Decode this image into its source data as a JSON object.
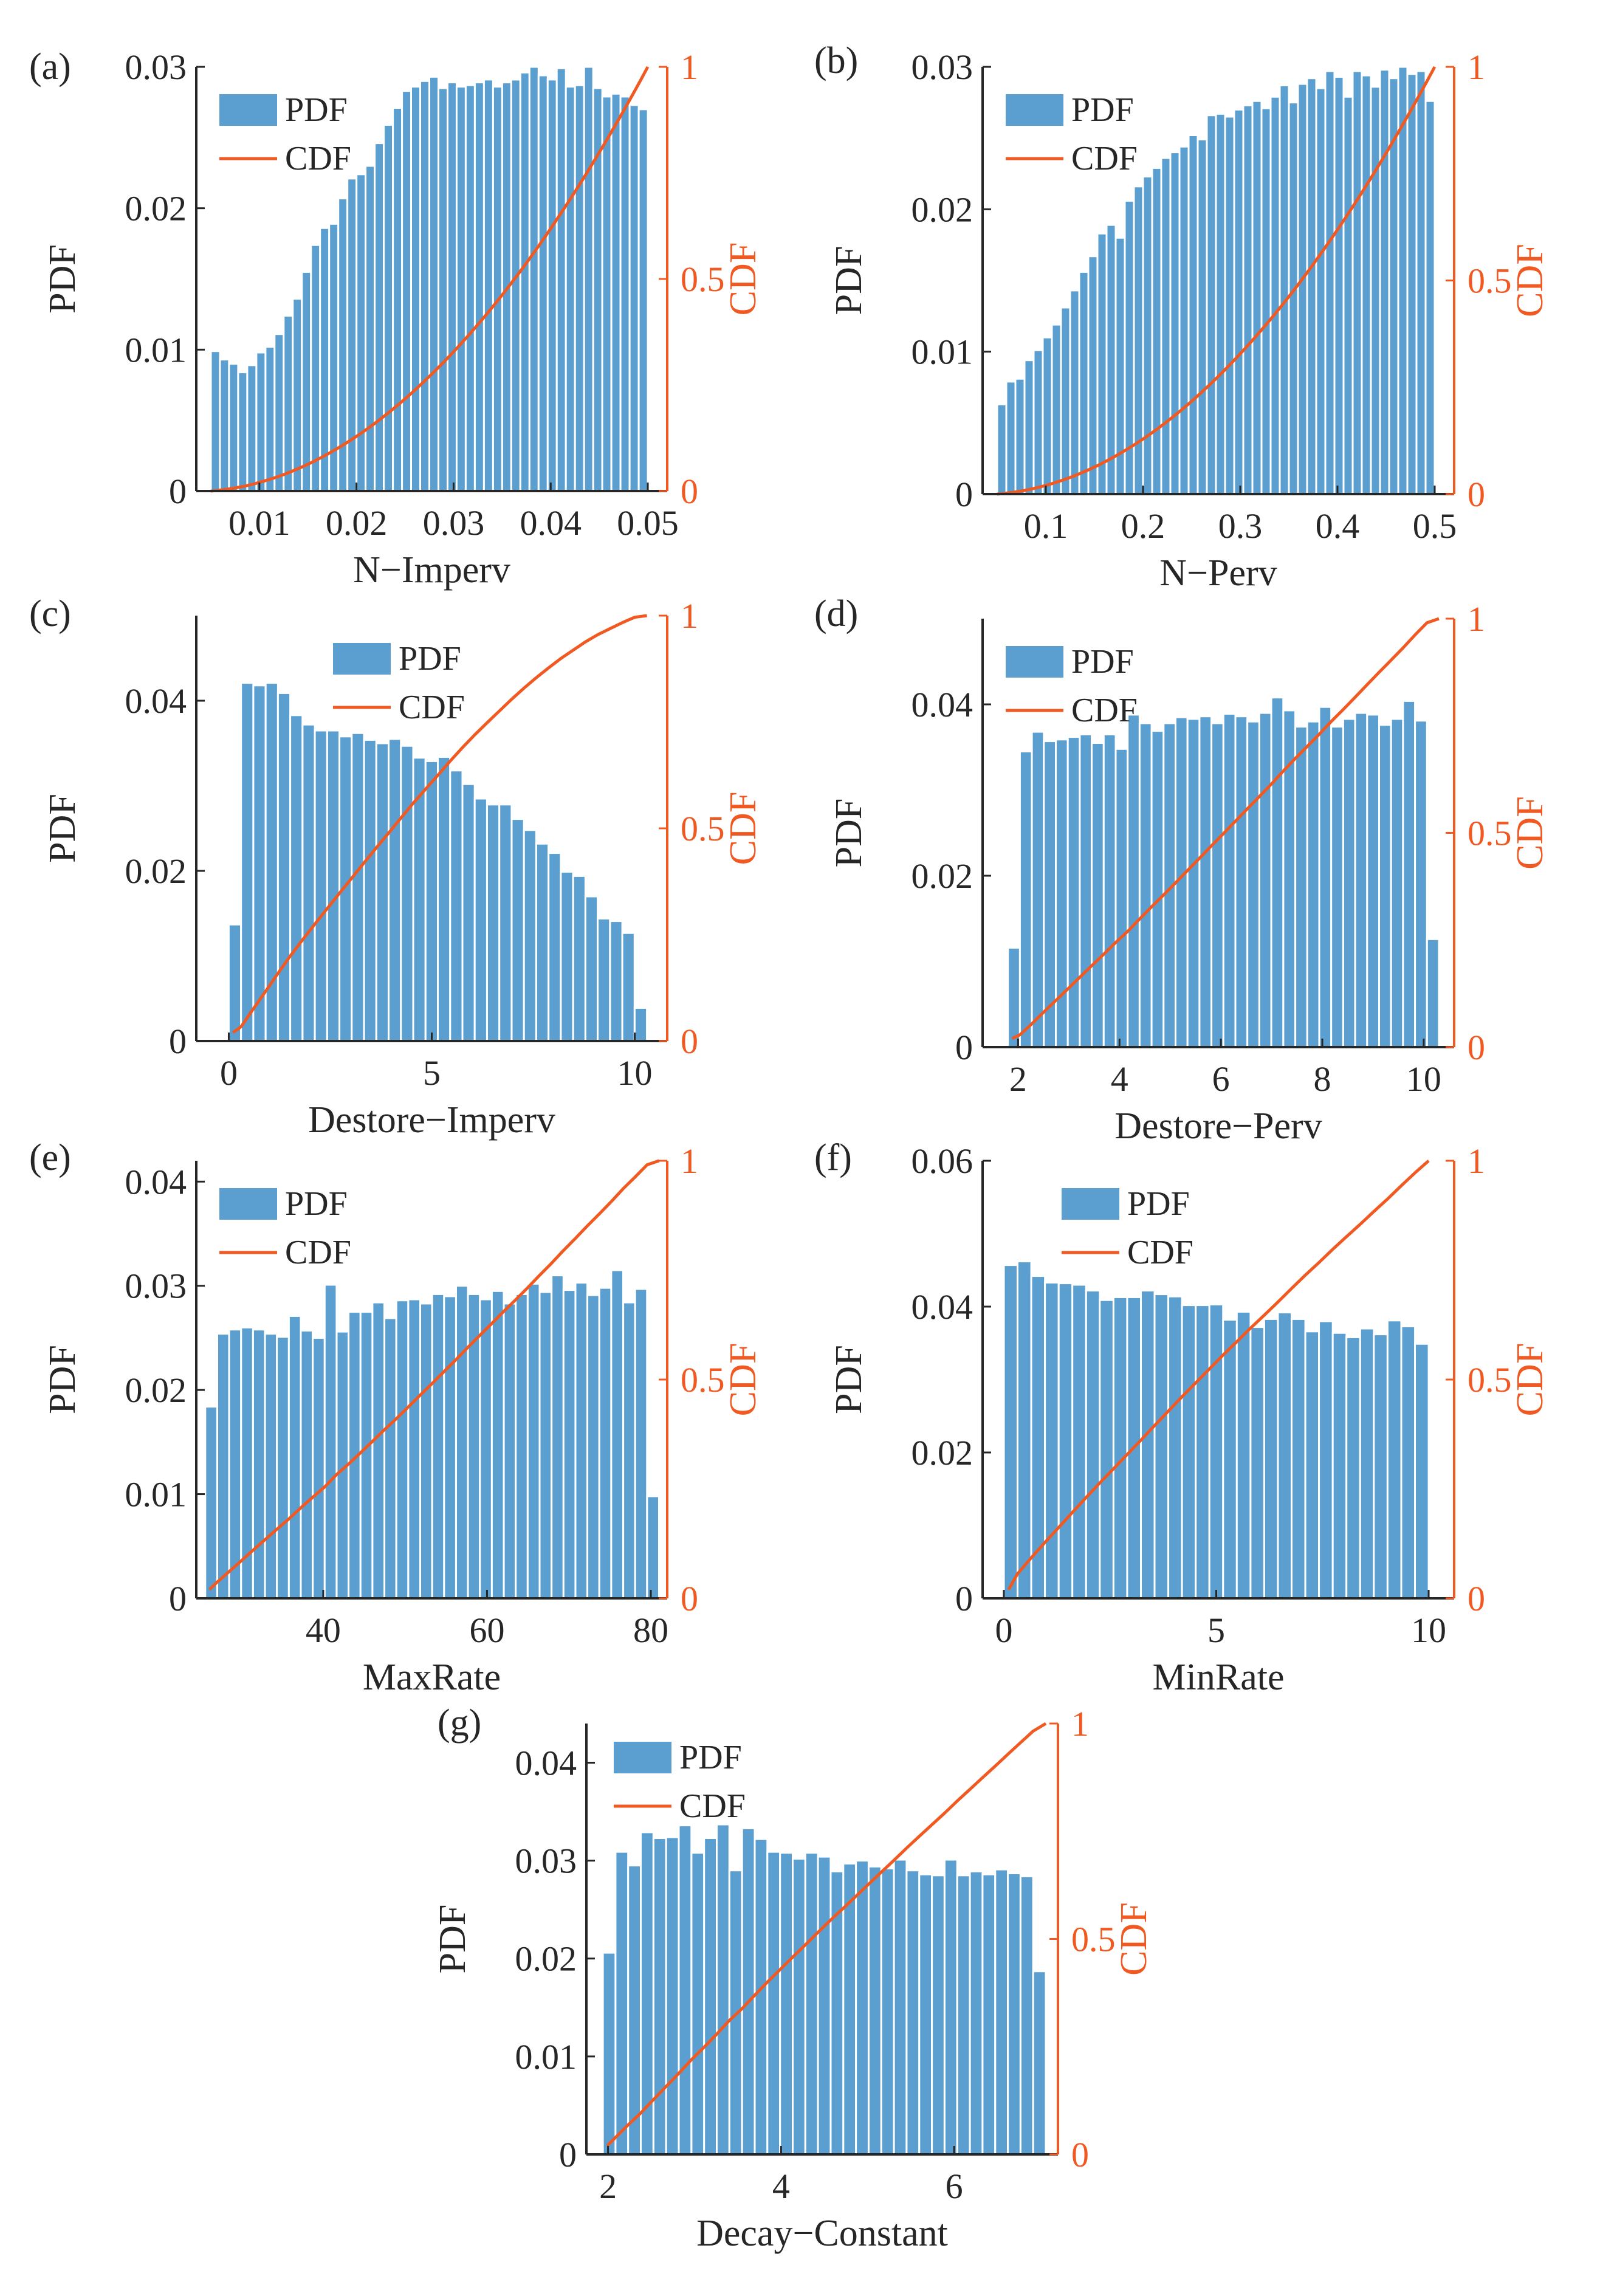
{
  "colors": {
    "bar": "#5a9fd0",
    "bar_edge": "#ffffff",
    "cdf": "#f05a22",
    "axis": "#262626"
  },
  "chart_data": [
    {
      "panel": "(a)",
      "type": "bar+line",
      "xlabel": "N−Imperv",
      "ylabel": "PDF",
      "ylabel_right": "CDF",
      "legend": [
        "PDF",
        "CDF"
      ],
      "xlim": [
        0.0035,
        0.052
      ],
      "ylim": [
        0,
        0.03
      ],
      "y2lim": [
        0,
        1
      ],
      "xticks": [
        0.01,
        0.02,
        0.03,
        0.04,
        0.05
      ],
      "xticklabels": [
        "0.01",
        "0.02",
        "0.03",
        "0.04",
        "0.05"
      ],
      "yticks": [
        0,
        0.01,
        0.02,
        0.03
      ],
      "yticklabels": [
        "0",
        "0.01",
        "0.02",
        "0.03"
      ],
      "y2ticks": [
        0,
        0.5,
        1
      ],
      "y2ticklabels": [
        "0",
        "0.5",
        "1"
      ],
      "bin_start": 0.005,
      "bin_end": 0.05,
      "values": [
        0.0099,
        0.0093,
        0.009,
        0.0084,
        0.0089,
        0.0098,
        0.0102,
        0.0111,
        0.0124,
        0.0136,
        0.0155,
        0.0174,
        0.0186,
        0.0189,
        0.0207,
        0.0221,
        0.0224,
        0.023,
        0.0246,
        0.0259,
        0.0271,
        0.0283,
        0.0286,
        0.029,
        0.0293,
        0.0285,
        0.0289,
        0.0286,
        0.0287,
        0.0289,
        0.0291,
        0.0286,
        0.0289,
        0.0291,
        0.0296,
        0.03,
        0.0294,
        0.0291,
        0.0299,
        0.0286,
        0.0287,
        0.03,
        0.0285,
        0.0279,
        0.0281,
        0.0279,
        0.0273,
        0.027
      ],
      "cdf_shape": "quadratic"
    },
    {
      "panel": "(b)",
      "type": "bar+line",
      "xlabel": "N−Perv",
      "ylabel": "PDF",
      "ylabel_right": "CDF",
      "legend": [
        "PDF",
        "CDF"
      ],
      "xlim": [
        0.035,
        0.52
      ],
      "ylim": [
        0,
        0.03
      ],
      "y2lim": [
        0,
        1
      ],
      "xticks": [
        0.1,
        0.2,
        0.3,
        0.4,
        0.5
      ],
      "xticklabels": [
        "0.1",
        "0.2",
        "0.3",
        "0.4",
        "0.5"
      ],
      "yticks": [
        0,
        0.01,
        0.02,
        0.03
      ],
      "yticklabels": [
        "0",
        "0.01",
        "0.02",
        "0.03"
      ],
      "y2ticks": [
        0,
        0.5,
        1
      ],
      "y2ticklabels": [
        "0",
        "0.5",
        "1"
      ],
      "bin_start": 0.05,
      "bin_end": 0.5,
      "values": [
        0.0063,
        0.0079,
        0.0081,
        0.0094,
        0.0101,
        0.011,
        0.0119,
        0.0131,
        0.0143,
        0.0156,
        0.0167,
        0.0183,
        0.0189,
        0.018,
        0.0206,
        0.0216,
        0.0223,
        0.0229,
        0.0236,
        0.024,
        0.0244,
        0.0252,
        0.0249,
        0.0266,
        0.0267,
        0.0265,
        0.027,
        0.0273,
        0.0276,
        0.0271,
        0.0279,
        0.0287,
        0.0275,
        0.0288,
        0.0292,
        0.0285,
        0.0297,
        0.0293,
        0.0279,
        0.0297,
        0.0294,
        0.0286,
        0.0298,
        0.0292,
        0.03,
        0.0295,
        0.0297,
        0.0276
      ],
      "cdf_shape": "quadratic"
    },
    {
      "panel": "(c)",
      "type": "bar+line",
      "xlabel": "Destore−Imperv",
      "ylabel": "PDF",
      "ylabel_right": "CDF",
      "legend": [
        "PDF",
        "CDF"
      ],
      "xlim": [
        -0.8,
        10.8
      ],
      "ylim": [
        0,
        0.05
      ],
      "y2lim": [
        0,
        1
      ],
      "xticks": [
        0,
        5,
        10
      ],
      "xticklabels": [
        "0",
        "5",
        "10"
      ],
      "yticks": [
        0,
        0.02,
        0.04
      ],
      "yticklabels": [
        "0",
        "0.02",
        "0.04"
      ],
      "y2ticks": [
        0,
        0.5,
        1
      ],
      "y2ticklabels": [
        "0",
        "0.5",
        "1"
      ],
      "bin_start": 0.0,
      "bin_end": 10.3,
      "values": [
        0.0137,
        0.0421,
        0.0418,
        0.0421,
        0.0409,
        0.0383,
        0.0372,
        0.0365,
        0.0365,
        0.0358,
        0.0362,
        0.0354,
        0.035,
        0.0355,
        0.0347,
        0.0333,
        0.0329,
        0.0334,
        0.0318,
        0.0302,
        0.0285,
        0.0278,
        0.0278,
        0.0261,
        0.0248,
        0.0232,
        0.0221,
        0.0199,
        0.0194,
        0.017,
        0.0144,
        0.0141,
        0.0127,
        0.0039
      ],
      "cdf_shape": "integral"
    },
    {
      "panel": "(d)",
      "type": "bar+line",
      "xlabel": "Destore−Perv",
      "ylabel": "PDF",
      "ylabel_right": "CDF",
      "legend": [
        "PDF",
        "CDF"
      ],
      "xlim": [
        1.3,
        10.6
      ],
      "ylim": [
        0,
        0.05
      ],
      "y2lim": [
        0,
        1
      ],
      "xticks": [
        2,
        4,
        6,
        8,
        10
      ],
      "xticklabels": [
        "2",
        "4",
        "6",
        "8",
        "10"
      ],
      "yticks": [
        0,
        0.02,
        0.04
      ],
      "yticklabels": [
        "0",
        "0.02",
        "0.04"
      ],
      "y2ticks": [
        0,
        0.5,
        1
      ],
      "y2ticklabels": [
        "0",
        "0.5",
        "1"
      ],
      "bin_start": 1.8,
      "bin_end": 10.3,
      "values": [
        0.0116,
        0.0345,
        0.0368,
        0.0357,
        0.0359,
        0.0362,
        0.0365,
        0.0355,
        0.0365,
        0.0348,
        0.0388,
        0.0378,
        0.0369,
        0.0378,
        0.0385,
        0.0383,
        0.0386,
        0.0378,
        0.0389,
        0.0386,
        0.038,
        0.039,
        0.0408,
        0.0393,
        0.0374,
        0.038,
        0.0397,
        0.0374,
        0.0383,
        0.039,
        0.0388,
        0.0376,
        0.0383,
        0.0404,
        0.0381,
        0.0126
      ],
      "cdf_shape": "integral"
    },
    {
      "panel": "(e)",
      "type": "bar+line",
      "xlabel": "MaxRate",
      "ylabel": "PDF",
      "ylabel_right": "CDF",
      "legend": [
        "PDF",
        "CDF"
      ],
      "xlim": [
        24.5,
        82
      ],
      "ylim": [
        0,
        0.042
      ],
      "y2lim": [
        0,
        1
      ],
      "xticks": [
        40,
        60,
        80
      ],
      "xticklabels": [
        "40",
        "60",
        "80"
      ],
      "yticks": [
        0,
        0.01,
        0.02,
        0.03,
        0.04
      ],
      "yticklabels": [
        "0",
        "0.01",
        "0.02",
        "0.03",
        "0.04"
      ],
      "y2ticks": [
        0,
        0.5,
        1
      ],
      "y2ticklabels": [
        "0",
        "0.5",
        "1"
      ],
      "bin_start": 25.6,
      "bin_end": 81.0,
      "values": [
        0.0184,
        0.0254,
        0.0258,
        0.026,
        0.0258,
        0.0254,
        0.0251,
        0.0271,
        0.0257,
        0.025,
        0.0301,
        0.0256,
        0.0275,
        0.0275,
        0.0284,
        0.0269,
        0.0286,
        0.0287,
        0.0283,
        0.0292,
        0.029,
        0.03,
        0.0292,
        0.0287,
        0.0295,
        0.0283,
        0.0292,
        0.0302,
        0.0294,
        0.031,
        0.0296,
        0.0303,
        0.0291,
        0.0298,
        0.0315,
        0.0284,
        0.0297,
        0.0098
      ],
      "cdf_shape": "integral"
    },
    {
      "panel": "(f)",
      "type": "bar+line",
      "xlabel": "MinRate",
      "ylabel": "PDF",
      "ylabel_right": "CDF",
      "legend": [
        "PDF",
        "CDF"
      ],
      "xlim": [
        -0.5,
        10.6
      ],
      "ylim": [
        0,
        0.06
      ],
      "y2lim": [
        0,
        1
      ],
      "xticks": [
        0,
        5,
        10
      ],
      "xticklabels": [
        "0",
        "5",
        "10"
      ],
      "yticks": [
        0,
        0.02,
        0.04,
        0.06
      ],
      "yticklabels": [
        "0",
        "0.02",
        "0.04",
        "0.06"
      ],
      "y2ticks": [
        0,
        0.5,
        1
      ],
      "y2ticklabels": [
        "0",
        "0.5",
        "1"
      ],
      "bin_start": 0.0,
      "bin_end": 10.0,
      "values": [
        0.0457,
        0.0462,
        0.0442,
        0.0433,
        0.0432,
        0.043,
        0.0422,
        0.0409,
        0.0413,
        0.0413,
        0.0422,
        0.0417,
        0.0414,
        0.0402,
        0.0402,
        0.0403,
        0.0382,
        0.0393,
        0.0372,
        0.0383,
        0.0392,
        0.0383,
        0.0366,
        0.038,
        0.0364,
        0.0358,
        0.037,
        0.0362,
        0.0381,
        0.0373,
        0.0349
      ],
      "cdf_shape": "integral"
    },
    {
      "panel": "(g)",
      "type": "bar+line",
      "xlabel": "Decay−Constant",
      "ylabel": "PDF",
      "ylabel_right": "CDF",
      "legend": [
        "PDF",
        "CDF"
      ],
      "xlim": [
        1.75,
        7.2
      ],
      "ylim": [
        0,
        0.044
      ],
      "y2lim": [
        0,
        1
      ],
      "xticks": [
        2,
        4,
        6
      ],
      "xticklabels": [
        "2",
        "4",
        "6"
      ],
      "yticks": [
        0,
        0.01,
        0.02,
        0.03,
        0.04
      ],
      "yticklabels": [
        "0",
        "0.01",
        "0.02",
        "0.03",
        "0.04"
      ],
      "y2ticks": [
        0,
        0.5,
        1
      ],
      "y2ticklabels": [
        "0",
        "0.5",
        "1"
      ],
      "bin_start": 1.94,
      "bin_end": 7.06,
      "values": [
        0.0206,
        0.0309,
        0.0295,
        0.0329,
        0.0323,
        0.0324,
        0.0336,
        0.0308,
        0.0323,
        0.0337,
        0.029,
        0.0333,
        0.0322,
        0.0309,
        0.0308,
        0.0302,
        0.0308,
        0.0304,
        0.0289,
        0.0297,
        0.03,
        0.0294,
        0.0292,
        0.0301,
        0.029,
        0.0286,
        0.0285,
        0.0301,
        0.0285,
        0.0289,
        0.0286,
        0.0291,
        0.0287,
        0.0284,
        0.0187
      ],
      "cdf_shape": "integral"
    }
  ]
}
